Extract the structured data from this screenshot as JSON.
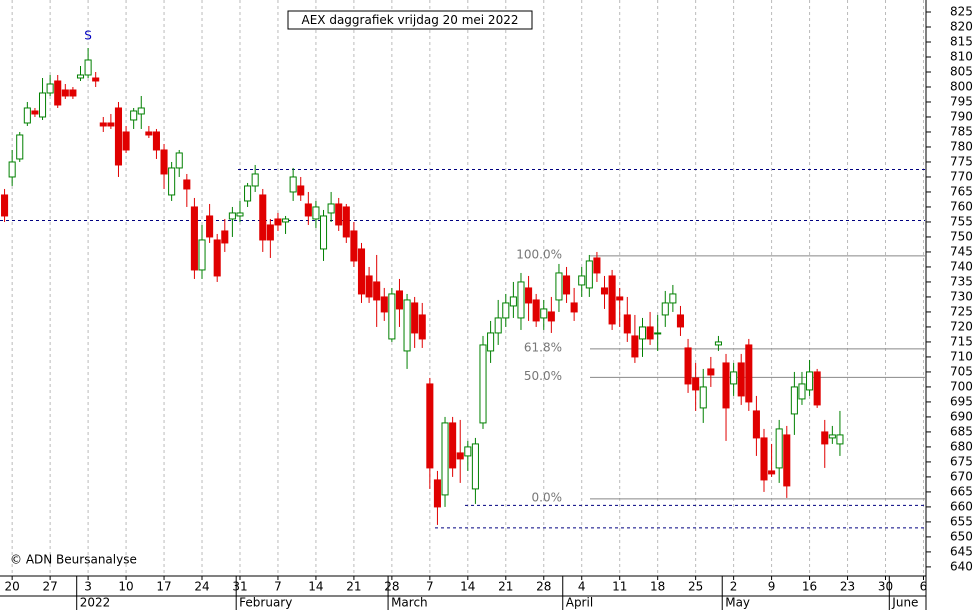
{
  "chart_data": {
    "type": "candlestick",
    "title": "AEX daggrafiek vrijdag 20 mei 2022",
    "copyright": "© ADN Beursanalyse",
    "signal_label": "S",
    "up_color": "#008000",
    "down_color": "#e00000",
    "open": [
      764,
      770,
      776,
      788,
      792,
      790,
      798,
      802,
      799,
      799,
      803,
      804,
      803,
      788,
      788,
      793,
      785,
      789,
      791,
      785,
      785,
      779,
      764,
      773,
      769,
      760,
      739,
      757,
      749,
      752,
      756,
      757,
      762,
      767,
      764,
      754,
      756,
      755,
      765,
      767,
      761,
      756,
      746,
      758,
      761,
      760,
      752,
      746,
      737,
      735,
      730,
      716,
      732,
      712,
      728,
      724,
      701,
      669,
      664,
      688,
      678,
      677,
      666,
      688,
      712,
      718,
      723,
      727,
      723,
      733,
      729,
      723,
      725,
      729,
      737,
      728,
      734,
      733,
      743,
      733,
      737,
      730,
      724,
      717,
      716,
      720,
      718,
      724,
      728,
      724,
      713,
      703,
      693,
      706,
      714,
      708,
      701,
      708,
      714,
      692,
      683,
      672,
      673,
      684,
      691,
      696,
      699,
      705,
      685,
      683,
      681
    ],
    "high": [
      766,
      779,
      785,
      795,
      793,
      803,
      804,
      804,
      801,
      800,
      807,
      813,
      805,
      790,
      791,
      795,
      787,
      793,
      797,
      787,
      786,
      781,
      775,
      779,
      771,
      763,
      754,
      761,
      751,
      756,
      760,
      762,
      768,
      774,
      766,
      756,
      758,
      757,
      773,
      770,
      765,
      762,
      759,
      765,
      763,
      761,
      755,
      748,
      740,
      744,
      733,
      733,
      736,
      731,
      730,
      728,
      703,
      672,
      690,
      690,
      689,
      682,
      683,
      717,
      722,
      729,
      731,
      735,
      738,
      737,
      731,
      729,
      730,
      741,
      740,
      733,
      740,
      744,
      745,
      737,
      739,
      733,
      730,
      724,
      723,
      725,
      724,
      732,
      734,
      727,
      716,
      708,
      706,
      710,
      717,
      711,
      708,
      711,
      716,
      697,
      686,
      681,
      689,
      687,
      705,
      705,
      709,
      706,
      689,
      687,
      692
    ],
    "low": [
      755,
      767,
      775,
      787,
      790,
      789,
      797,
      793,
      796,
      796,
      802,
      803,
      800,
      785,
      786,
      770,
      778,
      786,
      786,
      783,
      776,
      766,
      762,
      770,
      760,
      736,
      736,
      748,
      735,
      745,
      750,
      755,
      760,
      765,
      745,
      743,
      752,
      751,
      762,
      762,
      754,
      753,
      742,
      755,
      752,
      748,
      740,
      728,
      728,
      720,
      722,
      715,
      720,
      706,
      713,
      713,
      666,
      654,
      660,
      670,
      668,
      672,
      661,
      686,
      708,
      714,
      720,
      723,
      719,
      722,
      720,
      719,
      718,
      725,
      728,
      722,
      730,
      730,
      735,
      726,
      719,
      720,
      715,
      708,
      710,
      714,
      712,
      720,
      725,
      717,
      698,
      692,
      688,
      700,
      712,
      682,
      697,
      694,
      692,
      677,
      665,
      670,
      668,
      663,
      684,
      694,
      697,
      693,
      673,
      681,
      677
    ],
    "close": [
      757,
      775,
      784,
      793,
      791,
      798,
      801,
      794,
      797,
      797,
      804,
      809,
      802,
      787,
      787,
      774,
      779,
      792,
      793,
      784,
      779,
      771,
      773,
      778,
      766,
      739,
      749,
      750,
      737,
      748,
      758,
      758,
      767,
      771,
      749,
      749,
      754,
      756,
      770,
      764,
      757,
      760,
      757,
      761,
      754,
      750,
      742,
      731,
      730,
      729,
      725,
      731,
      726,
      729,
      718,
      716,
      673,
      660,
      688,
      673,
      676,
      680,
      681,
      714,
      718,
      723,
      728,
      730,
      735,
      728,
      722,
      726,
      722,
      738,
      731,
      725,
      737,
      742,
      738,
      731,
      721,
      729,
      718,
      710,
      720,
      716,
      718,
      728,
      731,
      720,
      701,
      699,
      700,
      704,
      715,
      693,
      705,
      697,
      695,
      683,
      669,
      671,
      686,
      667,
      700,
      701,
      705,
      694,
      681,
      684,
      684
    ],
    "xlim": [
      -0.6,
      121.2
    ],
    "xticks": [
      {
        "value": 1,
        "label": "20"
      },
      {
        "value": 6,
        "label": "27"
      },
      {
        "value": 11,
        "label": "3"
      },
      {
        "value": 16,
        "label": "10"
      },
      {
        "value": 21,
        "label": "17"
      },
      {
        "value": 26,
        "label": "24"
      },
      {
        "value": 31,
        "label": "31"
      },
      {
        "value": 36,
        "label": "7"
      },
      {
        "value": 41,
        "label": "14"
      },
      {
        "value": 46,
        "label": "21"
      },
      {
        "value": 51,
        "label": "28"
      },
      {
        "value": 56,
        "label": "7"
      },
      {
        "value": 61,
        "label": "14"
      },
      {
        "value": 66,
        "label": "21"
      },
      {
        "value": 71,
        "label": "28"
      },
      {
        "value": 76,
        "label": "4"
      },
      {
        "value": 81,
        "label": "11"
      },
      {
        "value": 86,
        "label": "18"
      },
      {
        "value": 91,
        "label": "25"
      },
      {
        "value": 96,
        "label": "2"
      },
      {
        "value": 101,
        "label": "9"
      },
      {
        "value": 106,
        "label": "16"
      },
      {
        "value": 111,
        "label": "23"
      },
      {
        "value": 116,
        "label": "30"
      },
      {
        "value": 121,
        "label": "6"
      }
    ],
    "months": [
      {
        "value": 9.5,
        "label": "2022"
      },
      {
        "value": 30.5,
        "label": "February"
      },
      {
        "value": 50.5,
        "label": "March"
      },
      {
        "value": 73.5,
        "label": "April"
      },
      {
        "value": 94.5,
        "label": "May"
      },
      {
        "value": 116.5,
        "label": "June"
      }
    ],
    "ylim": [
      637.3,
      829
    ],
    "yticks": [
      640,
      645,
      650,
      655,
      660,
      665,
      670,
      675,
      680,
      685,
      690,
      695,
      700,
      705,
      710,
      715,
      720,
      725,
      730,
      735,
      740,
      745,
      750,
      755,
      760,
      765,
      770,
      775,
      780,
      785,
      790,
      795,
      800,
      805,
      810,
      815,
      820,
      825
    ],
    "support_lines": [
      755.5,
      772.5,
      660.5,
      653
    ],
    "fib_levels": [
      {
        "value": 743.7,
        "label": "100.0%"
      },
      {
        "value": 712.7,
        "label": "61.8%"
      },
      {
        "value": 703.2,
        "label": "50.0%"
      },
      {
        "value": 662.7,
        "label": "0.0%"
      }
    ],
    "grid": true
  }
}
